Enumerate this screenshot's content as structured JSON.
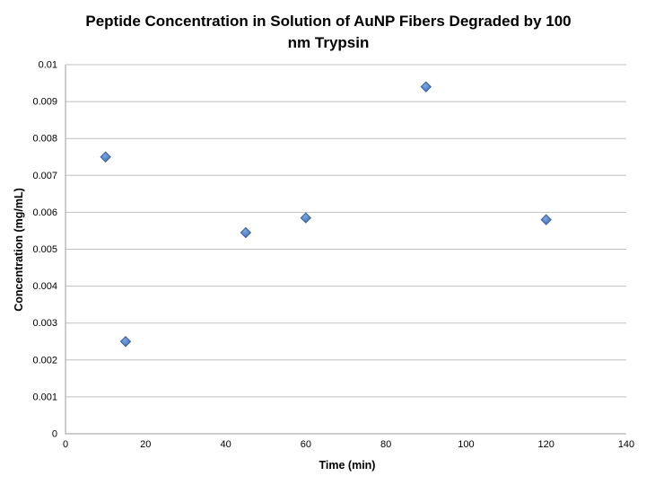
{
  "page": {
    "background": "#ffffff"
  },
  "chart_data": {
    "type": "scatter",
    "title": "Peptide Concentration in Solution of AuNP Fibers Degraded by 100 nm Trypsin",
    "title_lines": [
      "Peptide Concentration in Solution of AuNP Fibers Degraded by 100",
      "nm Trypsin"
    ],
    "xlabel": "Time (min)",
    "ylabel": "Concentration (mg/mL)",
    "xlim": [
      0,
      140
    ],
    "ylim": [
      0,
      0.01
    ],
    "xticks": {
      "values": [
        0,
        20,
        40,
        60,
        80,
        100,
        120,
        140
      ],
      "labels": [
        "0",
        "20",
        "40",
        "60",
        "80",
        "100",
        "120",
        "140"
      ]
    },
    "yticks": {
      "values": [
        0,
        0.001,
        0.002,
        0.003,
        0.004,
        0.005,
        0.006,
        0.007,
        0.008,
        0.009,
        0.01
      ],
      "labels": [
        "0",
        "0.001",
        "0.002",
        "0.003",
        "0.004",
        "0.005",
        "0.006",
        "0.007",
        "0.008",
        "0.009",
        "0.01"
      ]
    },
    "grid": "horizontal",
    "legend": "none",
    "series": [
      {
        "marker": "diamond",
        "x": [
          10,
          15,
          45,
          60,
          90,
          120
        ],
        "y": [
          0.0075,
          0.0025,
          0.00545,
          0.00585,
          0.0094,
          0.0058
        ]
      }
    ]
  },
  "colors": {
    "background": "#ffffff",
    "text": "#000000",
    "gridline": "#c0c0c0",
    "axis_line": "#9d9d9d",
    "marker_fill_light": "#7ea6e0",
    "marker_fill": "#5585cb",
    "marker_fill_dark": "#41699f",
    "marker_stroke": "#3a5f9a"
  }
}
